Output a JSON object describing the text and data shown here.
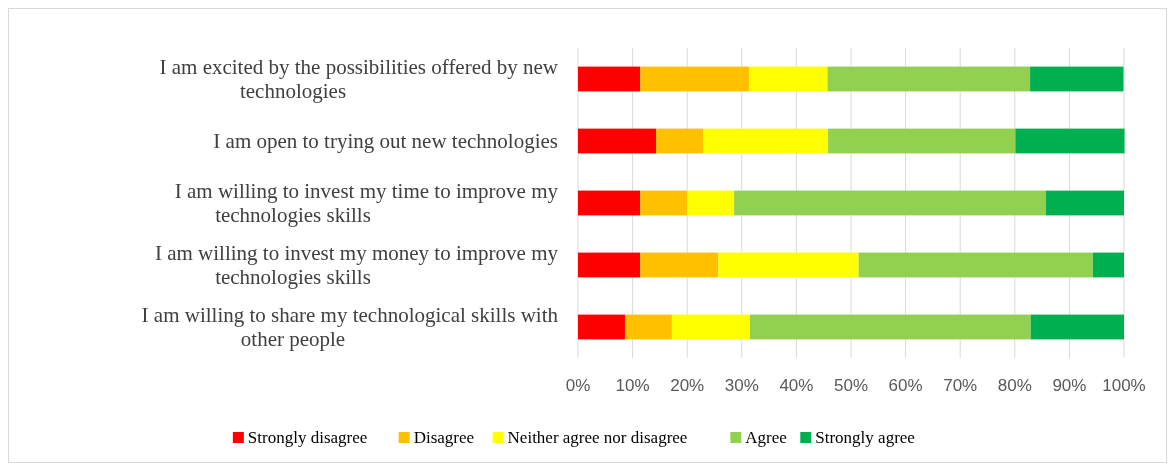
{
  "chart_data": {
    "type": "bar",
    "orientation": "horizontal",
    "stacked": true,
    "categories": [
      "I am excited by the possibilities offered by new technologies",
      "I am open to trying out new technologies",
      "I am willing to invest my time to improve my technologies skills",
      "I am willing to invest my money to improve my technologies skills",
      "I am willing to share my technological skills with other people"
    ],
    "series": [
      {
        "name": "Strongly disagree",
        "color": "#ff0000",
        "values": [
          11.4,
          14.3,
          11.4,
          11.4,
          8.6
        ]
      },
      {
        "name": "Disagree",
        "color": "#ffc000",
        "values": [
          20.0,
          8.6,
          8.6,
          14.3,
          8.6
        ]
      },
      {
        "name": "Neither agree nor disagree",
        "color": "#ffff00",
        "values": [
          14.3,
          22.9,
          8.6,
          25.7,
          14.3
        ]
      },
      {
        "name": "Agree",
        "color": "#92d050",
        "values": [
          37.1,
          34.3,
          57.1,
          42.9,
          51.4
        ]
      },
      {
        "name": "Strongly agree",
        "color": "#00b050",
        "values": [
          17.1,
          20.0,
          14.3,
          5.7,
          17.1
        ]
      }
    ],
    "xlim": [
      0,
      100
    ],
    "xticks": [
      {
        "value": 0,
        "label": "0%"
      },
      {
        "value": 10,
        "label": "10%"
      },
      {
        "value": 20,
        "label": "20%"
      },
      {
        "value": 30,
        "label": "30%"
      },
      {
        "value": 40,
        "label": "40%"
      },
      {
        "value": 50,
        "label": "50%"
      },
      {
        "value": 60,
        "label": "60%"
      },
      {
        "value": 70,
        "label": "70%"
      },
      {
        "value": 80,
        "label": "80%"
      },
      {
        "value": 90,
        "label": "90%"
      },
      {
        "value": 100,
        "label": "100%"
      }
    ],
    "grid": "x",
    "legend": "bottom"
  }
}
